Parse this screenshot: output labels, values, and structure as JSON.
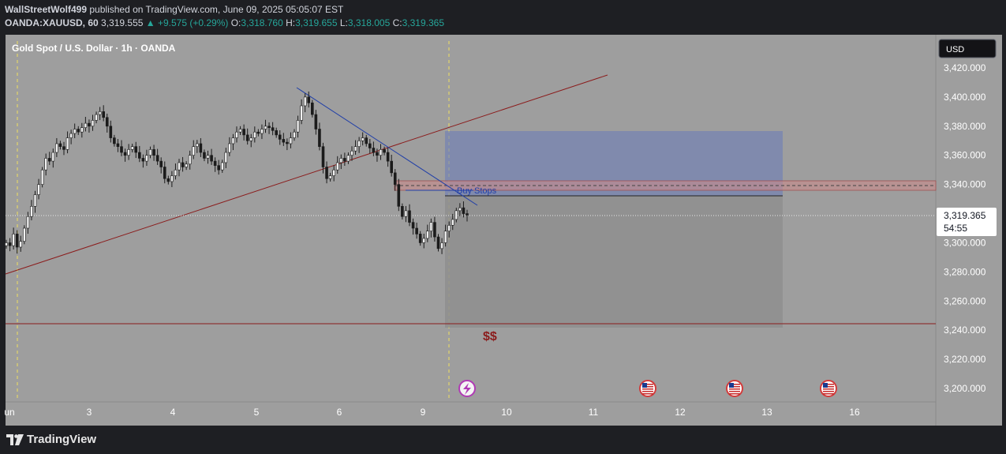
{
  "header": {
    "author": "WallStreetWolf499",
    "published_text": "published on TradingView.com, June 09, 2025 05:05:07 EST",
    "symbol": "OANDA:XAUUSD, 60",
    "last": "3,319.555",
    "change": "▲ +9.575 (+0.29%)",
    "o_label": "O:",
    "o_value": "3,318.760",
    "h_label": "H:",
    "h_value": "3,319.655",
    "l_label": "L:",
    "l_value": "3,318.005",
    "c_label": "C:",
    "c_value": "3,319.365"
  },
  "chart_title": "Gold Spot / U.S. Dollar · 1h · OANDA",
  "currency": "USD",
  "price_label": {
    "price": "3,319.365",
    "countdown": "54:55"
  },
  "annotations": {
    "buy_stops": "Buy Stops",
    "dollars": "$$"
  },
  "footer": {
    "brand": "TradingView"
  },
  "colors": {
    "chart_bg": "#9e9e9e",
    "panel_bg": "#1e1f23",
    "accent": "#2962ff",
    "trend_red": "#8b1c1c",
    "trend_blue": "#1f3ea8",
    "green": "#26a69a"
  },
  "chart_data": {
    "type": "candlestick",
    "y_ticks": [
      "3,420.000",
      "3,400.000",
      "3,380.000",
      "3,360.000",
      "3,340.000",
      "3,320.000",
      "3,300.000",
      "3,280.000",
      "3,260.000",
      "3,240.000",
      "3,220.000",
      "3,200.000"
    ],
    "y_range": [
      3200,
      3420
    ],
    "x_ticks": [
      "un",
      "3",
      "4",
      "5",
      "6",
      "9",
      "10",
      "11",
      "12",
      "13",
      "16"
    ],
    "close_series": [
      3300,
      3298,
      3306,
      3297,
      3301,
      3310,
      3318,
      3325,
      3333,
      3340,
      3350,
      3358,
      3356,
      3362,
      3368,
      3366,
      3364,
      3372,
      3375,
      3378,
      3376,
      3379,
      3382,
      3380,
      3384,
      3388,
      3390,
      3386,
      3380,
      3372,
      3368,
      3366,
      3362,
      3360,
      3364,
      3366,
      3362,
      3358,
      3356,
      3360,
      3364,
      3360,
      3356,
      3352,
      3344,
      3342,
      3346,
      3350,
      3355,
      3352,
      3354,
      3360,
      3366,
      3368,
      3362,
      3358,
      3360,
      3356,
      3353,
      3350,
      3355,
      3362,
      3368,
      3372,
      3376,
      3378,
      3374,
      3370,
      3372,
      3376,
      3375,
      3378,
      3380,
      3379,
      3377,
      3374,
      3371,
      3369,
      3368,
      3372,
      3376,
      3384,
      3394,
      3400,
      3396,
      3388,
      3378,
      3366,
      3352,
      3344,
      3346,
      3350,
      3355,
      3358,
      3356,
      3360,
      3363,
      3366,
      3370,
      3372,
      3368,
      3365,
      3362,
      3360,
      3364,
      3362,
      3356,
      3348,
      3340,
      3325,
      3318,
      3322,
      3314,
      3310,
      3306,
      3300,
      3303,
      3308,
      3314,
      3304,
      3296,
      3300,
      3308,
      3312,
      3316,
      3322,
      3324,
      3320,
      3319
    ],
    "candle_count": 129,
    "levels": {
      "horizontal_red": 3245,
      "buy_stops_zone": [
        3337,
        3342
      ],
      "buy_stops_dashed": 3339.5,
      "current_price": 3319.365,
      "position_entry": 3332,
      "position_top": 3376,
      "position_bottom": 3243
    },
    "events": [
      "flash-icon",
      "us-flag-icon",
      "us-flag-icon",
      "us-flag-icon"
    ]
  }
}
